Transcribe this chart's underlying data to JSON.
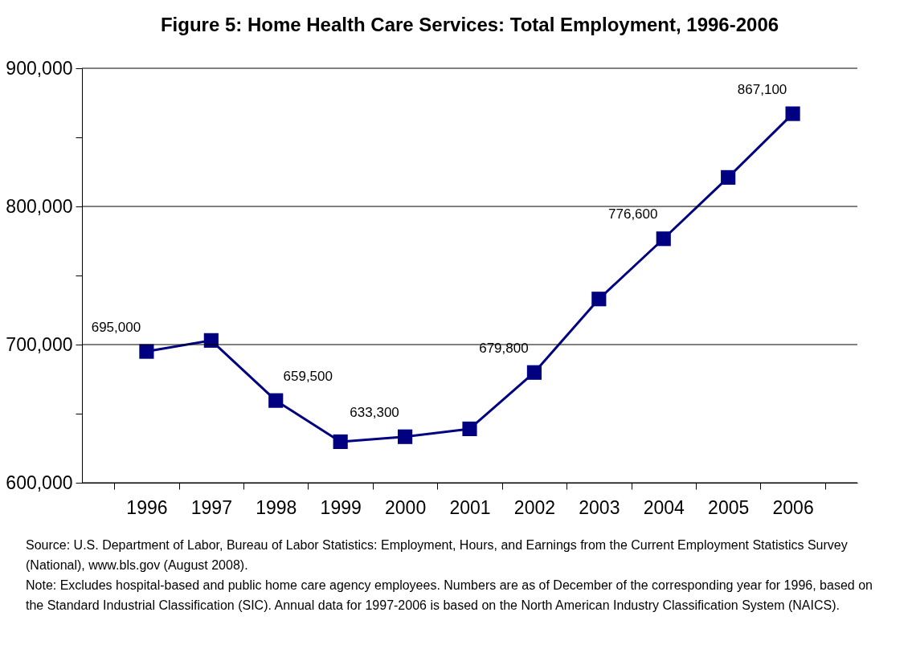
{
  "chart_data": {
    "type": "line",
    "title": "Figure 5: Home Health Care Services: Total Employment, 1996-2006",
    "categories": [
      "1996",
      "1997",
      "1998",
      "1999",
      "2000",
      "2001",
      "2002",
      "2003",
      "2004",
      "2005",
      "2006"
    ],
    "series": [
      {
        "color": "#000080",
        "values": [
          695000,
          703000,
          659500,
          629700,
          633300,
          639000,
          679800,
          733000,
          776600,
          821000,
          867100
        ],
        "value_labels": [
          "695,000",
          null,
          "659,500",
          null,
          "633,300",
          null,
          "679,800",
          null,
          "776,600",
          null,
          "867,100"
        ]
      }
    ],
    "ylim": [
      600000,
      900000
    ],
    "yticks": [
      {
        "value": 600000,
        "label": "600,000"
      },
      {
        "value": 650000,
        "label": null
      },
      {
        "value": 700000,
        "label": "700,000"
      },
      {
        "value": 750000,
        "label": null
      },
      {
        "value": 800000,
        "label": "800,000"
      },
      {
        "value": 850000,
        "label": null
      },
      {
        "value": 900000,
        "label": "900,000"
      }
    ],
    "grid": "y",
    "marker": "square",
    "line_style": "solid",
    "legend": false,
    "annotations": [
      "Source: U.S. Department of Labor, Bureau of Labor Statistics: Employment, Hours, and Earnings from the Current Employment Statistics Survey (National), www.bls.gov (August 2008).",
      "Note: Excludes hospital-based and public home care agency employees. Numbers are as of December of the corresponding year for 1996, based on the Standard Industrial Classification (SIC). Annual data for 1997-2006 is based on the North American Industry Classification System (NAICS)."
    ]
  }
}
